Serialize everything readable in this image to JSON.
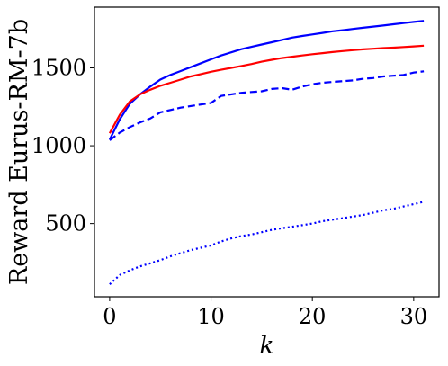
{
  "chart_data": {
    "type": "line",
    "xlabel": "k",
    "ylabel": "Reward Eurus-RM-7b",
    "xlim": [
      -1.5,
      32.5
    ],
    "ylim": [
      30,
      1890
    ],
    "xticks": [
      0,
      10,
      20,
      30
    ],
    "yticks": [
      500,
      1000,
      1500
    ],
    "grid": false,
    "legend": "none",
    "series": [
      {
        "color": "#0000ff",
        "style": "solid",
        "x": [
          0,
          1,
          2,
          3,
          4,
          5,
          6,
          7,
          8,
          9,
          10,
          11,
          12,
          13,
          14,
          15,
          16,
          17,
          18,
          19,
          20,
          21,
          22,
          23,
          24,
          25,
          26,
          27,
          28,
          29,
          30,
          31
        ],
        "values": [
          1040,
          1170,
          1270,
          1330,
          1380,
          1425,
          1455,
          1480,
          1505,
          1530,
          1555,
          1580,
          1600,
          1620,
          1635,
          1650,
          1665,
          1680,
          1695,
          1705,
          1715,
          1725,
          1735,
          1742,
          1750,
          1758,
          1765,
          1772,
          1780,
          1788,
          1795,
          1802
        ]
      },
      {
        "color": "#ff0000",
        "style": "solid",
        "x": [
          0,
          1,
          2,
          3,
          4,
          5,
          6,
          7,
          8,
          9,
          10,
          11,
          12,
          13,
          14,
          15,
          16,
          17,
          18,
          19,
          20,
          21,
          22,
          23,
          24,
          25,
          26,
          27,
          28,
          29,
          30,
          31
        ],
        "values": [
          1080,
          1200,
          1285,
          1330,
          1360,
          1385,
          1405,
          1425,
          1445,
          1460,
          1475,
          1488,
          1500,
          1512,
          1525,
          1540,
          1552,
          1563,
          1572,
          1580,
          1588,
          1595,
          1602,
          1608,
          1614,
          1619,
          1623,
          1627,
          1630,
          1634,
          1638,
          1643
        ]
      },
      {
        "color": "#0000ff",
        "style": "dashed",
        "x": [
          0,
          1,
          2,
          3,
          4,
          5,
          6,
          7,
          8,
          9,
          10,
          11,
          12,
          13,
          14,
          15,
          16,
          17,
          18,
          19,
          20,
          21,
          22,
          23,
          24,
          25,
          26,
          27,
          28,
          29,
          30,
          31
        ],
        "values": [
          1035,
          1085,
          1120,
          1150,
          1175,
          1215,
          1230,
          1245,
          1255,
          1265,
          1275,
          1320,
          1330,
          1340,
          1345,
          1350,
          1365,
          1370,
          1360,
          1380,
          1395,
          1405,
          1410,
          1415,
          1420,
          1430,
          1435,
          1445,
          1450,
          1455,
          1470,
          1478
        ]
      },
      {
        "color": "#0000ff",
        "style": "dotted",
        "x": [
          0,
          1,
          2,
          3,
          4,
          5,
          6,
          7,
          8,
          9,
          10,
          11,
          12,
          13,
          14,
          15,
          16,
          17,
          18,
          19,
          20,
          21,
          22,
          23,
          24,
          25,
          26,
          27,
          28,
          29,
          30,
          31
        ],
        "values": [
          110,
          170,
          200,
          225,
          245,
          265,
          290,
          310,
          330,
          345,
          360,
          385,
          405,
          420,
          430,
          445,
          460,
          470,
          480,
          490,
          500,
          515,
          525,
          535,
          545,
          555,
          570,
          585,
          595,
          610,
          625,
          640
        ]
      }
    ]
  }
}
